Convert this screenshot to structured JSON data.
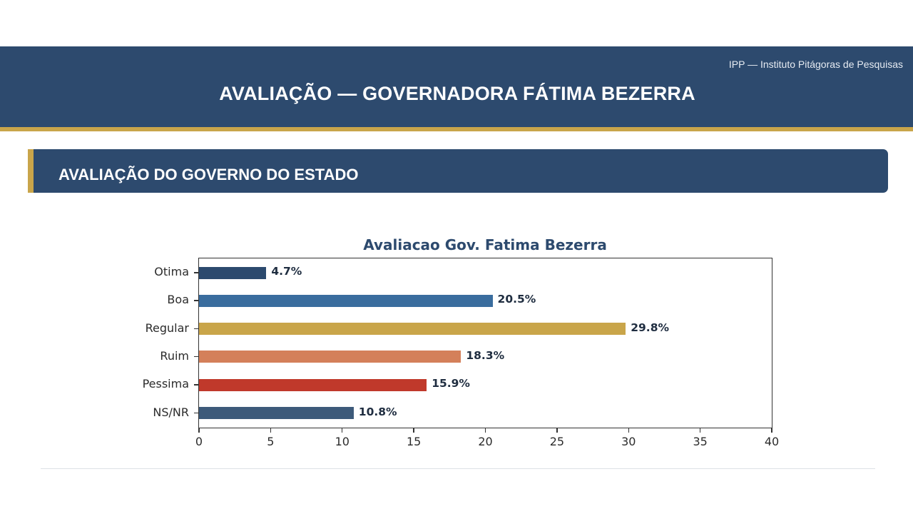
{
  "header": {
    "organization": "IPP — Instituto Pitágoras de Pesquisas",
    "title": "AVALIAÇÃO — GOVERNADORA FÁTIMA BEZERRA"
  },
  "section": {
    "title": "AVALIAÇÃO DO GOVERNO DO ESTADO"
  },
  "colors": {
    "header_bg": "#2d4a6e",
    "accent_gold": "#c9a54a"
  },
  "chart_data": {
    "type": "bar",
    "orientation": "horizontal",
    "title": "Avaliacao Gov. Fatima Bezerra",
    "categories": [
      "Otima",
      "Boa",
      "Regular",
      "Ruim",
      "Pessima",
      "NS/NR"
    ],
    "values": [
      4.7,
      20.5,
      29.8,
      18.3,
      15.9,
      10.8
    ],
    "value_labels": [
      "4.7%",
      "20.5%",
      "29.8%",
      "18.3%",
      "15.9%",
      "10.8%"
    ],
    "colors": [
      "#2c4a6e",
      "#3a6d9e",
      "#c9a54a",
      "#d4805a",
      "#c0392b",
      "#3d5a7a"
    ],
    "xlabel": "",
    "ylabel": "",
    "xlim": [
      0,
      40
    ],
    "xticks": [
      "0",
      "5",
      "10",
      "15",
      "20",
      "25",
      "30",
      "35",
      "40"
    ],
    "grid": false,
    "legend": null
  }
}
